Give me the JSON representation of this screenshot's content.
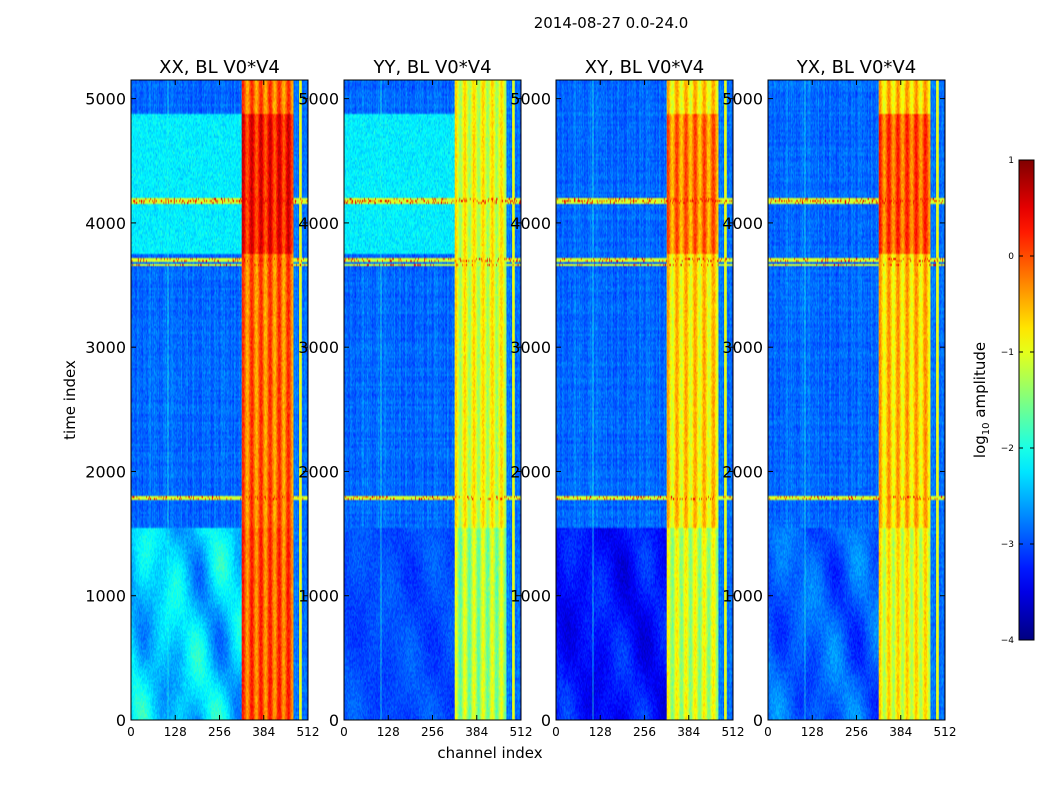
{
  "chart_data": {
    "type": "heatmap",
    "suptitle": "2014-08-27 0.0-24.0",
    "xlabel": "channel index",
    "ylabel": "time index",
    "xlim": [
      0,
      512
    ],
    "ylim": [
      0,
      5150
    ],
    "xticks": [
      0,
      128,
      256,
      384,
      512
    ],
    "yticks": [
      0,
      1000,
      2000,
      3000,
      4000,
      5000
    ],
    "colormap": "jet",
    "colorbar": {
      "label_prefix": "log",
      "label_sub": "10",
      "label_suffix": " amplitude",
      "vmin": -4,
      "vmax": 1,
      "ticks": [
        -4,
        -3,
        -2,
        -1,
        0,
        1
      ],
      "tick_labels": [
        "−4",
        "−3",
        "−2",
        "−1",
        "0",
        "1"
      ]
    },
    "panels": [
      {
        "title": "XX, BL V0*V4",
        "pol": "XX",
        "base_level": -2.85,
        "lower_level": -2.35,
        "lower_ripple": 0.55,
        "band_level": -0.15,
        "block_level": 0.3,
        "block_boost_low": 0.1
      },
      {
        "title": "YY, BL V0*V4",
        "pol": "YY",
        "base_level": -2.85,
        "lower_level": -3.0,
        "lower_ripple": 0.15,
        "band_level": -1.0,
        "block_level": -1.0,
        "block_boost_low": -0.3
      },
      {
        "title": "XY, BL V0*V4",
        "pol": "XY",
        "base_level": -2.85,
        "lower_level": -3.3,
        "lower_ripple": 0.3,
        "band_level": -0.75,
        "block_level": -0.25,
        "block_boost_low": -0.4
      },
      {
        "title": "YX, BL V0*V4",
        "pol": "YX",
        "base_level": -2.85,
        "lower_level": -2.9,
        "lower_ripple": 0.35,
        "band_level": -0.65,
        "block_level": -0.05,
        "block_boost_low": -0.3
      }
    ],
    "rfi_rows": [
      1790,
      3660,
      3700,
      4170,
      4190
    ],
    "regions": {
      "lower_block_end": 1540,
      "strong_block_start": 3750,
      "strong_block_end": 4870,
      "band_start_channel": 320,
      "band_end_channel": 470
    }
  }
}
